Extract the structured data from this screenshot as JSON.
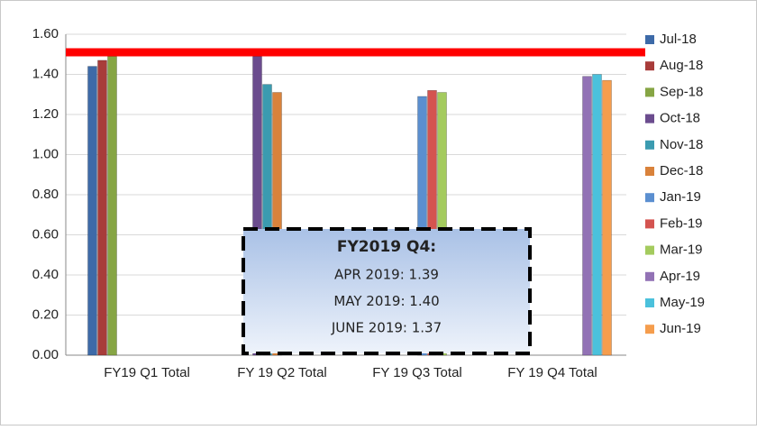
{
  "chart_data": {
    "type": "bar",
    "categories": [
      "FY19 Q1 Total",
      "FY 19 Q2 Total",
      "FY 19 Q3 Total",
      "FY 19 Q4 Total"
    ],
    "series": [
      {
        "name": "Jul-18",
        "color": "#3d6aa8",
        "values": [
          1.44,
          null,
          null,
          null
        ]
      },
      {
        "name": "Aug-18",
        "color": "#a83c3a",
        "values": [
          1.47,
          null,
          null,
          null
        ]
      },
      {
        "name": "Sep-18",
        "color": "#86a544",
        "values": [
          1.49,
          null,
          null,
          null
        ]
      },
      {
        "name": "Oct-18",
        "color": "#6b4c8e",
        "values": [
          null,
          1.49,
          null,
          null
        ]
      },
      {
        "name": "Nov-18",
        "color": "#3b9bb0",
        "values": [
          null,
          1.35,
          null,
          null
        ]
      },
      {
        "name": "Dec-18",
        "color": "#d9823b",
        "values": [
          null,
          1.31,
          null,
          null
        ]
      },
      {
        "name": "Jan-19",
        "color": "#5b8fd0",
        "values": [
          null,
          null,
          1.29,
          null
        ]
      },
      {
        "name": "Feb-19",
        "color": "#d45450",
        "values": [
          null,
          null,
          1.32,
          null
        ]
      },
      {
        "name": "Mar-19",
        "color": "#a4cb5e",
        "values": [
          null,
          null,
          1.31,
          null
        ]
      },
      {
        "name": "Apr-19",
        "color": "#9272b5",
        "values": [
          null,
          null,
          null,
          1.39
        ]
      },
      {
        "name": "May-19",
        "color": "#4bc1dc",
        "values": [
          null,
          null,
          null,
          1.4
        ]
      },
      {
        "name": "Jun-19",
        "color": "#f59d4d",
        "values": [
          null,
          null,
          null,
          1.37
        ]
      }
    ],
    "ylim": [
      0,
      1.6
    ],
    "yticks": [
      {
        "value": 0,
        "label": "0.00"
      },
      {
        "value": 0.2,
        "label": "0.20"
      },
      {
        "value": 0.4,
        "label": "0.40"
      },
      {
        "value": 0.6,
        "label": "0.60"
      },
      {
        "value": 0.8,
        "label": "0.80"
      },
      {
        "value": 1.0,
        "label": "1.00"
      },
      {
        "value": 1.2,
        "label": "1.20"
      },
      {
        "value": 1.4,
        "label": "1.40"
      },
      {
        "value": 1.6,
        "label": "1.60"
      }
    ],
    "grid": true,
    "legend": "right",
    "reference_line": {
      "value": 1.51,
      "color": "#ff0000"
    },
    "annotation": {
      "title": "FY2019 Q4:",
      "lines": [
        "APR 2019: 1.39",
        "MAY 2019: 1.40",
        "JUNE 2019: 1.37"
      ]
    }
  }
}
